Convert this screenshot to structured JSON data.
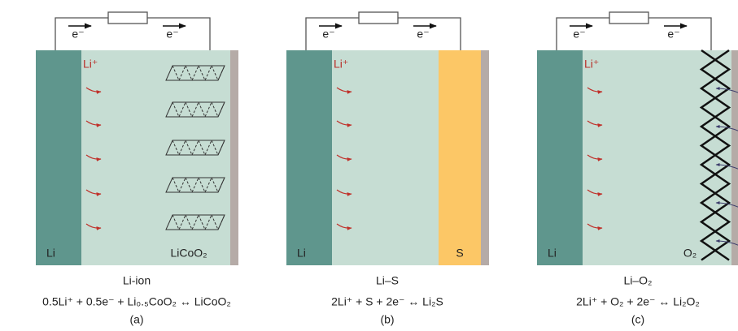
{
  "panels": [
    {
      "electron_left": "e⁻",
      "electron_right": "e⁻",
      "ion": "Li⁺",
      "anode": "Li",
      "cathode": "LiCoO₂",
      "name": "Li-ion",
      "equation": "0.5Li⁺ + 0.5e⁻ + Li₀.₅CoO₂ ↔ LiCoO₂",
      "label": "(a)"
    },
    {
      "electron_left": "e⁻",
      "electron_right": "e⁻",
      "ion": "Li⁺",
      "anode": "Li",
      "cathode": "S",
      "name": "Li–S",
      "equation": "2Li⁺ + S + 2e⁻ ↔ Li₂S",
      "label": "(b)"
    },
    {
      "electron_left": "e⁻",
      "electron_right": "e⁻",
      "ion": "Li⁺",
      "anode": "Li",
      "cathode": "O₂",
      "name": "Li–O₂",
      "equation": "2Li⁺ + O₂ + 2e⁻ ↔ Li₂O₂",
      "label": "(c)"
    }
  ]
}
